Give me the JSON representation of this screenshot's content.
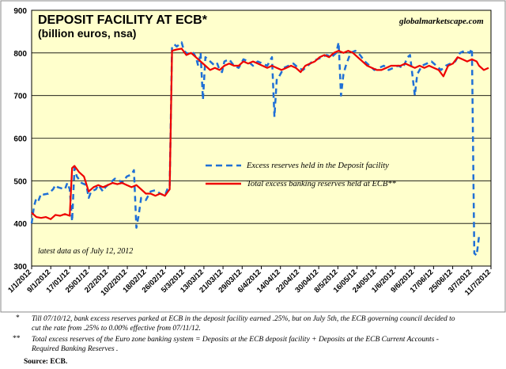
{
  "chart_data": {
    "type": "line",
    "title": "DEPOSIT FACILITY AT ECB*",
    "subtitle": "(billion euros, nsa)",
    "watermark": "globalmarketscape.com",
    "annotation": "latest data as of  July 12, 2012",
    "ylim": [
      300,
      900
    ],
    "y_ticks": [
      300,
      400,
      500,
      600,
      700,
      800,
      900
    ],
    "x_range": [
      "2012-01-01",
      "2012-07-12"
    ],
    "x_tick_labels": [
      "1/1/2012",
      "9/1/2012",
      "17/01/12",
      "25/01/12",
      "2/2/2012",
      "10/2/2012",
      "18/02/12",
      "26/02/12",
      "5/3/2012",
      "13/03/12",
      "21/03/12",
      "29/03/12",
      "6/4/2012",
      "14/04/12",
      "22/04/12",
      "30/04/12",
      "8/5/2012",
      "16/05/12",
      "24/05/12",
      "1/6/2012",
      "9/6/2012",
      "17/06/12",
      "25/06/12",
      "3/7/2012",
      "11/7/2012"
    ],
    "grid": "horizontal",
    "legend_position": "center-right",
    "colors": {
      "plot_bg": "#ffffcc",
      "grid": "#000000",
      "excess": "#1f6fd6",
      "total": "#ee0000"
    },
    "series": [
      {
        "name": "Excess reserves held in the Deposit facility",
        "style": "dashed",
        "points": [
          [
            "2012-01-01",
            400
          ],
          [
            "2012-01-02",
            440
          ],
          [
            "2012-01-03",
            460
          ],
          [
            "2012-01-04",
            455
          ],
          [
            "2012-01-05",
            470
          ],
          [
            "2012-01-06",
            468
          ],
          [
            "2012-01-08",
            470
          ],
          [
            "2012-01-09",
            475
          ],
          [
            "2012-01-10",
            480
          ],
          [
            "2012-01-11",
            490
          ],
          [
            "2012-01-12",
            485
          ],
          [
            "2012-01-15",
            480
          ],
          [
            "2012-01-16",
            495
          ],
          [
            "2012-01-17",
            480
          ],
          [
            "2012-01-18",
            405
          ],
          [
            "2012-01-19",
            530
          ],
          [
            "2012-01-20",
            510
          ],
          [
            "2012-01-22",
            495
          ],
          [
            "2012-01-24",
            490
          ],
          [
            "2012-01-25",
            460
          ],
          [
            "2012-01-26",
            475
          ],
          [
            "2012-01-28",
            480
          ],
          [
            "2012-01-29",
            490
          ],
          [
            "2012-01-31",
            475
          ],
          [
            "2012-02-01",
            485
          ],
          [
            "2012-02-03",
            495
          ],
          [
            "2012-02-05",
            505
          ],
          [
            "2012-02-07",
            500
          ],
          [
            "2012-02-08",
            495
          ],
          [
            "2012-02-10",
            510
          ],
          [
            "2012-02-12",
            515
          ],
          [
            "2012-02-13",
            525
          ],
          [
            "2012-02-14",
            390
          ],
          [
            "2012-02-15",
            420
          ],
          [
            "2012-02-16",
            460
          ],
          [
            "2012-02-18",
            455
          ],
          [
            "2012-02-20",
            475
          ],
          [
            "2012-02-22",
            478
          ],
          [
            "2012-02-24",
            470
          ],
          [
            "2012-02-26",
            465
          ],
          [
            "2012-02-27",
            480
          ],
          [
            "2012-02-28",
            485
          ],
          [
            "2012-02-29",
            815
          ],
          [
            "2012-03-01",
            820
          ],
          [
            "2012-03-02",
            815
          ],
          [
            "2012-03-04",
            825
          ],
          [
            "2012-03-05",
            805
          ],
          [
            "2012-03-06",
            800
          ],
          [
            "2012-03-08",
            795
          ],
          [
            "2012-03-09",
            800
          ],
          [
            "2012-03-10",
            790
          ],
          [
            "2012-03-11",
            770
          ],
          [
            "2012-03-12",
            800
          ],
          [
            "2012-03-13",
            690
          ],
          [
            "2012-03-14",
            790
          ],
          [
            "2012-03-16",
            780
          ],
          [
            "2012-03-18",
            770
          ],
          [
            "2012-03-19",
            775
          ],
          [
            "2012-03-20",
            760
          ],
          [
            "2012-03-21",
            755
          ],
          [
            "2012-03-22",
            780
          ],
          [
            "2012-03-24",
            785
          ],
          [
            "2012-03-26",
            770
          ],
          [
            "2012-03-28",
            765
          ],
          [
            "2012-03-30",
            785
          ],
          [
            "2012-04-01",
            780
          ],
          [
            "2012-04-03",
            770
          ],
          [
            "2012-04-05",
            780
          ],
          [
            "2012-04-07",
            775
          ],
          [
            "2012-04-09",
            770
          ],
          [
            "2012-04-11",
            790
          ],
          [
            "2012-04-12",
            650
          ],
          [
            "2012-04-13",
            740
          ],
          [
            "2012-04-14",
            745
          ],
          [
            "2012-04-16",
            765
          ],
          [
            "2012-04-18",
            770
          ],
          [
            "2012-04-20",
            775
          ],
          [
            "2012-04-22",
            765
          ],
          [
            "2012-04-24",
            760
          ],
          [
            "2012-04-26",
            770
          ],
          [
            "2012-04-28",
            780
          ],
          [
            "2012-04-30",
            785
          ],
          [
            "2012-05-02",
            790
          ],
          [
            "2012-05-04",
            795
          ],
          [
            "2012-05-06",
            790
          ],
          [
            "2012-05-08",
            800
          ],
          [
            "2012-05-09",
            825
          ],
          [
            "2012-05-10",
            700
          ],
          [
            "2012-05-11",
            750
          ],
          [
            "2012-05-12",
            770
          ],
          [
            "2012-05-14",
            800
          ],
          [
            "2012-05-16",
            805
          ],
          [
            "2012-05-18",
            795
          ],
          [
            "2012-05-20",
            780
          ],
          [
            "2012-05-22",
            770
          ],
          [
            "2012-05-24",
            760
          ],
          [
            "2012-05-26",
            765
          ],
          [
            "2012-05-28",
            770
          ],
          [
            "2012-05-30",
            760
          ],
          [
            "2012-06-01",
            765
          ],
          [
            "2012-06-03",
            770
          ],
          [
            "2012-06-05",
            765
          ],
          [
            "2012-06-07",
            790
          ],
          [
            "2012-06-08",
            795
          ],
          [
            "2012-06-10",
            700
          ],
          [
            "2012-06-11",
            750
          ],
          [
            "2012-06-13",
            770
          ],
          [
            "2012-06-15",
            775
          ],
          [
            "2012-06-17",
            780
          ],
          [
            "2012-06-19",
            770
          ],
          [
            "2012-06-21",
            760
          ],
          [
            "2012-06-23",
            770
          ],
          [
            "2012-06-25",
            775
          ],
          [
            "2012-06-27",
            780
          ],
          [
            "2012-06-29",
            800
          ],
          [
            "2012-07-01",
            805
          ],
          [
            "2012-07-03",
            800
          ],
          [
            "2012-07-04",
            810
          ],
          [
            "2012-07-05",
            330
          ],
          [
            "2012-07-06",
            325
          ],
          [
            "2012-07-07",
            370
          ]
        ]
      },
      {
        "name": "Total excess banking reserves held at ECB**",
        "style": "solid",
        "points": [
          [
            "2012-01-01",
            425
          ],
          [
            "2012-01-03",
            415
          ],
          [
            "2012-01-05",
            413
          ],
          [
            "2012-01-07",
            415
          ],
          [
            "2012-01-09",
            410
          ],
          [
            "2012-01-11",
            420
          ],
          [
            "2012-01-13",
            418
          ],
          [
            "2012-01-15",
            422
          ],
          [
            "2012-01-17",
            418
          ],
          [
            "2012-01-18",
            530
          ],
          [
            "2012-01-19",
            535
          ],
          [
            "2012-01-21",
            520
          ],
          [
            "2012-01-23",
            510
          ],
          [
            "2012-01-25",
            475
          ],
          [
            "2012-01-27",
            485
          ],
          [
            "2012-01-29",
            490
          ],
          [
            "2012-01-31",
            485
          ],
          [
            "2012-02-02",
            490
          ],
          [
            "2012-02-04",
            495
          ],
          [
            "2012-02-06",
            492
          ],
          [
            "2012-02-08",
            495
          ],
          [
            "2012-02-10",
            490
          ],
          [
            "2012-02-12",
            485
          ],
          [
            "2012-02-14",
            490
          ],
          [
            "2012-02-16",
            480
          ],
          [
            "2012-02-18",
            470
          ],
          [
            "2012-02-20",
            470
          ],
          [
            "2012-02-22",
            465
          ],
          [
            "2012-02-24",
            470
          ],
          [
            "2012-02-26",
            465
          ],
          [
            "2012-02-28",
            480
          ],
          [
            "2012-02-29",
            805
          ],
          [
            "2012-03-02",
            808
          ],
          [
            "2012-03-04",
            810
          ],
          [
            "2012-03-06",
            795
          ],
          [
            "2012-03-08",
            800
          ],
          [
            "2012-03-10",
            790
          ],
          [
            "2012-03-12",
            780
          ],
          [
            "2012-03-14",
            770
          ],
          [
            "2012-03-16",
            760
          ],
          [
            "2012-03-18",
            765
          ],
          [
            "2012-03-20",
            760
          ],
          [
            "2012-03-22",
            770
          ],
          [
            "2012-03-24",
            775
          ],
          [
            "2012-03-26",
            770
          ],
          [
            "2012-03-28",
            770
          ],
          [
            "2012-03-30",
            780
          ],
          [
            "2012-04-01",
            775
          ],
          [
            "2012-04-03",
            780
          ],
          [
            "2012-04-05",
            775
          ],
          [
            "2012-04-07",
            770
          ],
          [
            "2012-04-09",
            765
          ],
          [
            "2012-04-11",
            770
          ],
          [
            "2012-04-13",
            765
          ],
          [
            "2012-04-15",
            760
          ],
          [
            "2012-04-17",
            765
          ],
          [
            "2012-04-19",
            770
          ],
          [
            "2012-04-21",
            765
          ],
          [
            "2012-04-23",
            755
          ],
          [
            "2012-04-25",
            770
          ],
          [
            "2012-04-27",
            775
          ],
          [
            "2012-04-29",
            780
          ],
          [
            "2012-05-01",
            790
          ],
          [
            "2012-05-03",
            795
          ],
          [
            "2012-05-05",
            790
          ],
          [
            "2012-05-07",
            800
          ],
          [
            "2012-05-09",
            805
          ],
          [
            "2012-05-11",
            800
          ],
          [
            "2012-05-13",
            805
          ],
          [
            "2012-05-15",
            800
          ],
          [
            "2012-05-17",
            790
          ],
          [
            "2012-05-19",
            780
          ],
          [
            "2012-05-21",
            770
          ],
          [
            "2012-05-23",
            765
          ],
          [
            "2012-05-25",
            760
          ],
          [
            "2012-05-27",
            760
          ],
          [
            "2012-05-29",
            765
          ],
          [
            "2012-05-31",
            770
          ],
          [
            "2012-06-02",
            770
          ],
          [
            "2012-06-04",
            770
          ],
          [
            "2012-06-06",
            775
          ],
          [
            "2012-06-08",
            770
          ],
          [
            "2012-06-10",
            765
          ],
          [
            "2012-06-12",
            770
          ],
          [
            "2012-06-14",
            765
          ],
          [
            "2012-06-16",
            770
          ],
          [
            "2012-06-18",
            765
          ],
          [
            "2012-06-20",
            760
          ],
          [
            "2012-06-22",
            745
          ],
          [
            "2012-06-24",
            770
          ],
          [
            "2012-06-26",
            775
          ],
          [
            "2012-06-28",
            790
          ],
          [
            "2012-06-30",
            785
          ],
          [
            "2012-07-02",
            780
          ],
          [
            "2012-07-04",
            785
          ],
          [
            "2012-07-06",
            780
          ],
          [
            "2012-07-07",
            770
          ],
          [
            "2012-07-09",
            760
          ],
          [
            "2012-07-11",
            765
          ]
        ]
      }
    ]
  },
  "notes": [
    {
      "mark": "*",
      "text_lines": [
        "Till 07/10/12, bank excess reserves parked at ECB in the deposit facility earned .25%, but on July 5th, the ECB governing council decided to",
        "cut the rate from .25% to 0.00% effective from 07/11/12."
      ]
    },
    {
      "mark": "**",
      "text_lines": [
        "Total excess reserves of the Euro zone banking system = Deposits at the  ECB deposit facility +  Deposits at the ECB Current Accounts -",
        "Required Banking Reserves ."
      ]
    }
  ],
  "source": "Source: ECB."
}
